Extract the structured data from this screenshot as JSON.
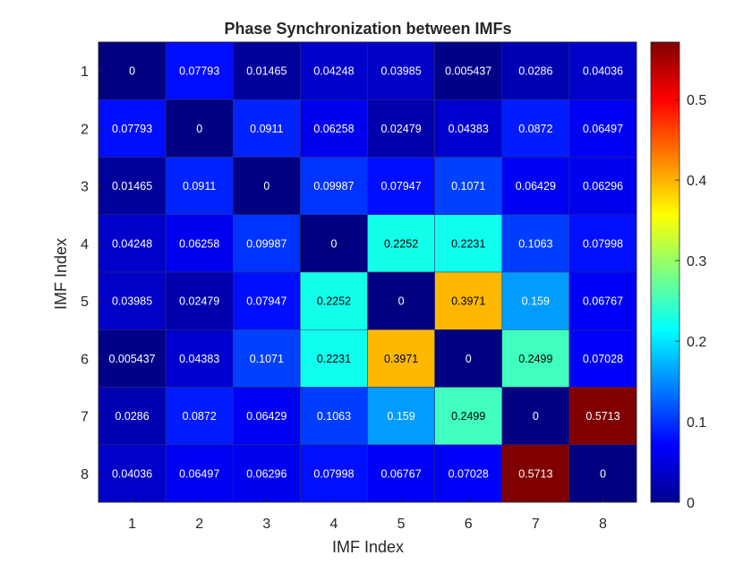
{
  "chart_data": {
    "type": "heatmap",
    "title": "Phase Synchronization between IMFs",
    "xlabel": "IMF Index",
    "ylabel": "IMF Index",
    "x_ticks": [
      "1",
      "2",
      "3",
      "4",
      "5",
      "6",
      "7",
      "8"
    ],
    "y_ticks": [
      "1",
      "2",
      "3",
      "4",
      "5",
      "6",
      "7",
      "8"
    ],
    "matrix": [
      [
        0,
        0.07793,
        0.01465,
        0.04248,
        0.03985,
        0.005437,
        0.0286,
        0.04036
      ],
      [
        0.07793,
        0,
        0.0911,
        0.06258,
        0.02479,
        0.04383,
        0.0872,
        0.06497
      ],
      [
        0.01465,
        0.0911,
        0,
        0.09987,
        0.07947,
        0.1071,
        0.06429,
        0.06296
      ],
      [
        0.04248,
        0.06258,
        0.09987,
        0,
        0.2252,
        0.2231,
        0.1063,
        0.07998
      ],
      [
        0.03985,
        0.02479,
        0.07947,
        0.2252,
        0,
        0.3971,
        0.159,
        0.06767
      ],
      [
        0.005437,
        0.04383,
        0.1071,
        0.2231,
        0.3971,
        0,
        0.2499,
        0.07028
      ],
      [
        0.0286,
        0.0872,
        0.06429,
        0.1063,
        0.159,
        0.2499,
        0,
        0.5713
      ],
      [
        0.04036,
        0.06497,
        0.06296,
        0.07998,
        0.06767,
        0.07028,
        0.5713,
        0
      ]
    ],
    "cell_labels": [
      [
        "0",
        "0.07793",
        "0.01465",
        "0.04248",
        "0.03985",
        "0.005437",
        "0.0286",
        "0.04036"
      ],
      [
        "0.07793",
        "0",
        "0.0911",
        "0.06258",
        "0.02479",
        "0.04383",
        "0.0872",
        "0.06497"
      ],
      [
        "0.01465",
        "0.0911",
        "0",
        "0.09987",
        "0.07947",
        "0.1071",
        "0.06429",
        "0.06296"
      ],
      [
        "0.04248",
        "0.06258",
        "0.09987",
        "0",
        "0.2252",
        "0.2231",
        "0.1063",
        "0.07998"
      ],
      [
        "0.03985",
        "0.02479",
        "0.07947",
        "0.2252",
        "0",
        "0.3971",
        "0.159",
        "0.06767"
      ],
      [
        "0.005437",
        "0.04383",
        "0.1071",
        "0.2231",
        "0.3971",
        "0",
        "0.2499",
        "0.07028"
      ],
      [
        "0.0286",
        "0.0872",
        "0.06429",
        "0.1063",
        "0.159",
        "0.2499",
        "0",
        "0.5713"
      ],
      [
        "0.04036",
        "0.06497",
        "0.06296",
        "0.07998",
        "0.06767",
        "0.07028",
        "0.5713",
        "0"
      ]
    ],
    "colormap": "jet",
    "color_range": [
      0,
      0.5713
    ],
    "colorbar": {
      "ticks": [
        0,
        0.1,
        0.2,
        0.3,
        0.4,
        0.5
      ],
      "tick_labels": [
        "0",
        "0.1",
        "0.2",
        "0.3",
        "0.4",
        "0.5"
      ],
      "placement": "right"
    },
    "grid": false
  }
}
